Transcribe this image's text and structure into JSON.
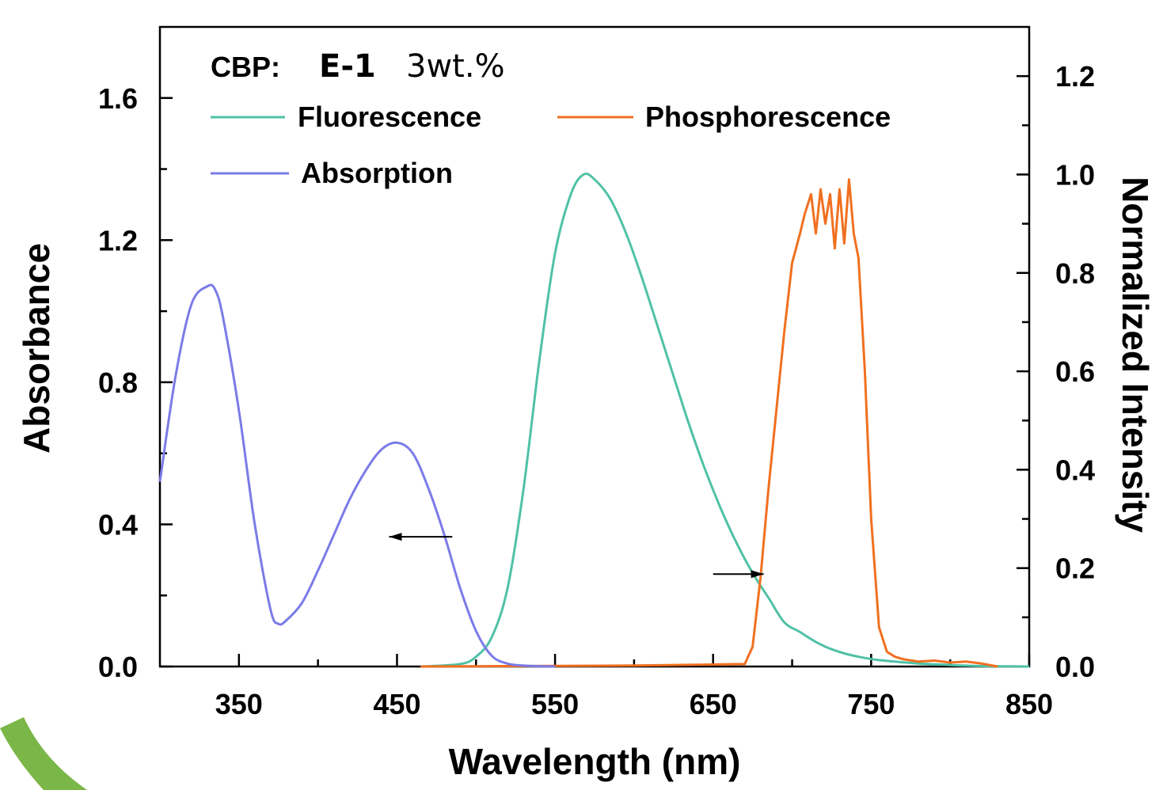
{
  "chart_data": {
    "type": "line",
    "title_parts": [
      "CBP:",
      "E-1",
      "3wt.%"
    ],
    "xlabel": "Wavelength (nm)",
    "ylabel_left": "Absorbance",
    "ylabel_right": "Normalized Intensity",
    "xlim": [
      300,
      850
    ],
    "ylim_left": [
      0,
      1.8
    ],
    "ylim_right": [
      0,
      1.3
    ],
    "x_ticks": [
      350,
      450,
      550,
      650,
      750,
      850
    ],
    "x_minor_ticks": [
      400,
      500,
      600,
      700,
      800
    ],
    "y_left_ticks": [
      0.0,
      0.4,
      0.8,
      1.2,
      1.6
    ],
    "y_left_tick_labels": [
      "0.0",
      "0.4",
      "0.8",
      "1.2",
      "1.6"
    ],
    "y_left_minor_ticks": [
      0.2,
      0.6,
      1.0,
      1.4
    ],
    "y_right_ticks": [
      0.0,
      0.2,
      0.4,
      0.6,
      0.8,
      1.0,
      1.2
    ],
    "y_right_tick_labels": [
      "0.0",
      "0.2",
      "0.4",
      "0.6",
      "0.8",
      "1.0",
      "1.2"
    ],
    "y_right_minor_ticks": [
      0.1,
      0.3,
      0.5,
      0.7,
      0.9,
      1.1
    ],
    "legend_position": "top-left",
    "grid": false,
    "series": [
      {
        "name": "Fluorescence",
        "axis": "right",
        "color": "#4fc1a6",
        "x": [
          465,
          490,
          500,
          510,
          520,
          530,
          540,
          550,
          560,
          568,
          575,
          585,
          595,
          605,
          615,
          625,
          635,
          645,
          655,
          665,
          675,
          685,
          695,
          705,
          715,
          725,
          735,
          745,
          755,
          765,
          780,
          800,
          820,
          850
        ],
        "y": [
          0.0,
          0.005,
          0.02,
          0.06,
          0.16,
          0.36,
          0.62,
          0.84,
          0.96,
          1.0,
          0.99,
          0.95,
          0.88,
          0.79,
          0.69,
          0.59,
          0.49,
          0.4,
          0.32,
          0.25,
          0.19,
          0.14,
          0.09,
          0.07,
          0.05,
          0.035,
          0.025,
          0.018,
          0.013,
          0.01,
          0.006,
          0.003,
          0.001,
          0.0
        ]
      },
      {
        "name": "Phosphorescence",
        "axis": "right",
        "color": "#f07020",
        "x": [
          465,
          600,
          670,
          675,
          680,
          685,
          690,
          695,
          700,
          705,
          708,
          712,
          715,
          718,
          721,
          724,
          727,
          730,
          733,
          736,
          739,
          742,
          746,
          750,
          755,
          760,
          765,
          770,
          780,
          790,
          800,
          810,
          820,
          830
        ],
        "y": [
          0.0,
          0.002,
          0.005,
          0.04,
          0.18,
          0.36,
          0.52,
          0.68,
          0.82,
          0.88,
          0.92,
          0.96,
          0.88,
          0.97,
          0.9,
          0.96,
          0.85,
          0.97,
          0.86,
          0.99,
          0.88,
          0.83,
          0.6,
          0.3,
          0.08,
          0.03,
          0.02,
          0.015,
          0.01,
          0.012,
          0.008,
          0.01,
          0.006,
          0.0
        ]
      },
      {
        "name": "Absorption",
        "axis": "left",
        "color": "#7b7be8",
        "x": [
          300,
          310,
          320,
          330,
          335,
          340,
          350,
          360,
          370,
          375,
          380,
          390,
          400,
          410,
          420,
          430,
          440,
          450,
          460,
          470,
          480,
          490,
          500,
          510,
          520,
          530,
          540,
          550
        ],
        "y": [
          0.52,
          0.82,
          1.02,
          1.07,
          1.06,
          0.98,
          0.72,
          0.4,
          0.16,
          0.12,
          0.13,
          0.18,
          0.27,
          0.37,
          0.47,
          0.55,
          0.61,
          0.63,
          0.6,
          0.5,
          0.37,
          0.22,
          0.1,
          0.03,
          0.008,
          0.003,
          0.001,
          0.0
        ]
      }
    ],
    "annotations": [
      {
        "type": "arrow",
        "series": "Absorption",
        "direction": "left",
        "x_from": 485,
        "x_to": 445,
        "y": 0.365,
        "axis": "left"
      },
      {
        "type": "arrow",
        "series": "Fluorescence",
        "direction": "right",
        "x_from": 650,
        "x_to": 682,
        "y": 0.26,
        "axis": "left"
      }
    ]
  }
}
